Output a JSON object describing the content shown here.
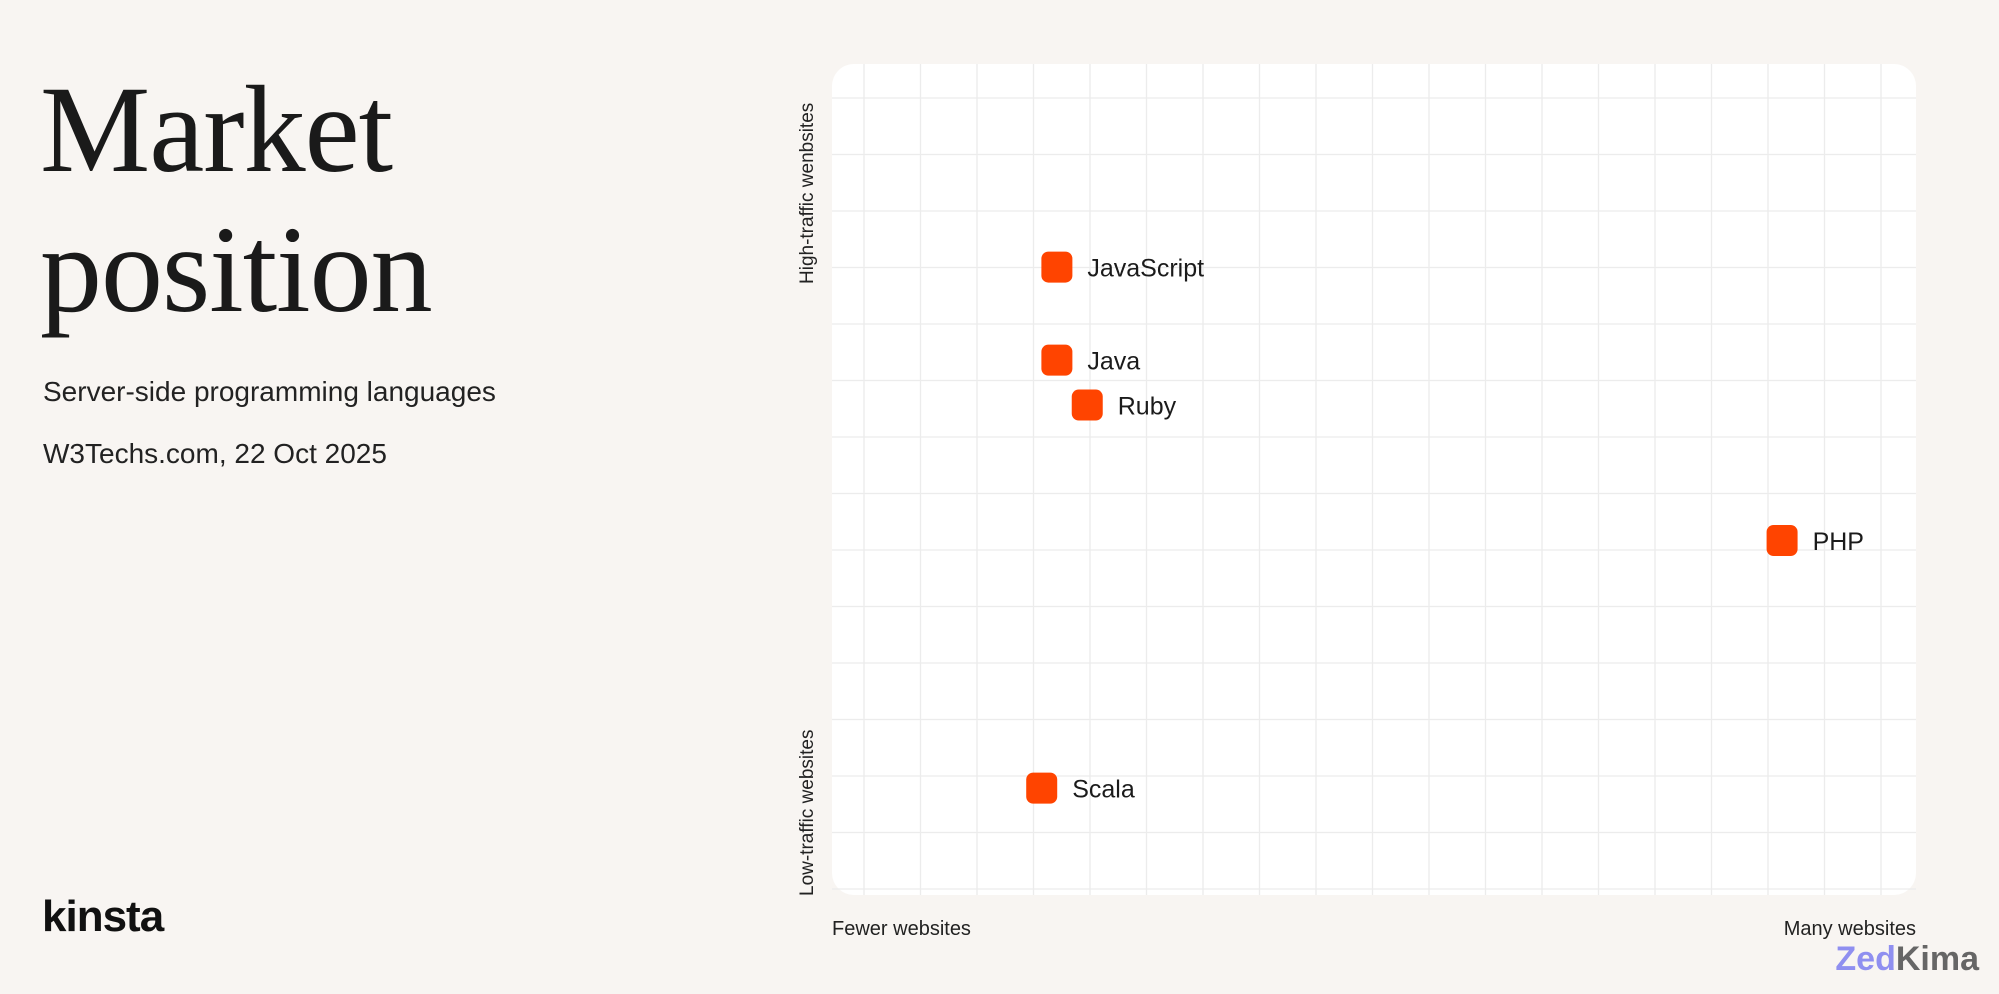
{
  "header": {
    "title_line1": "Market",
    "title_line2": "position",
    "subtitle": "Server-side programming languages",
    "source": "W3Techs.com, 22 Oct 2025"
  },
  "logo": "kinsta",
  "watermark": {
    "part1": "Zed",
    "part2": "Kima"
  },
  "chart_data": {
    "type": "scatter",
    "title": "",
    "xlabel_low": "Fewer websites",
    "xlabel_high": "Many websites",
    "ylabel_low": "Low-traffic websites",
    "ylabel_high": "High-traffic wenbsites",
    "xlim": [
      0,
      100
    ],
    "ylim": [
      0,
      100
    ],
    "grid": true,
    "marker_color": "#ff4400",
    "points": [
      {
        "label": "JavaScript",
        "x": 20.7,
        "y": 75.5
      },
      {
        "label": "Java",
        "x": 20.7,
        "y": 64.3
      },
      {
        "label": "Ruby",
        "x": 23.5,
        "y": 58.9
      },
      {
        "label": "PHP",
        "x": 87.6,
        "y": 42.6
      },
      {
        "label": "Scala",
        "x": 19.3,
        "y": 12.8
      }
    ]
  }
}
